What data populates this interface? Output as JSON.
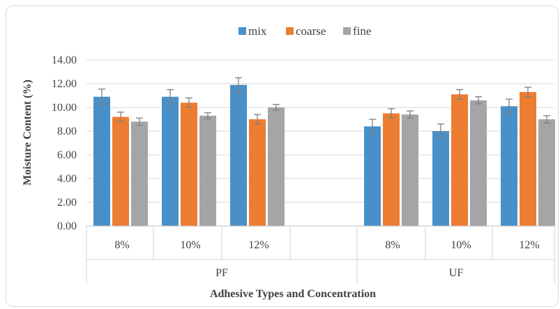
{
  "chart_data": {
    "type": "bar",
    "xlabel": "Adhesive Types and Concentration",
    "ylabel": "Moisture Content (%)",
    "ylim": [
      0,
      14
    ],
    "ytick_labels": [
      "0.00",
      "2.00",
      "4.00",
      "6.00",
      "8.00",
      "10.00",
      "12.00",
      "14.00"
    ],
    "grid": "horizontal",
    "legend_position": "top",
    "groups": [
      {
        "label": "PF",
        "categories": [
          "8%",
          "10%",
          "12%"
        ]
      },
      {
        "label": "UF",
        "categories": [
          "8%",
          "10%",
          "12%"
        ]
      }
    ],
    "series": [
      {
        "name": "mix",
        "color": "#4a90c8",
        "values": [
          10.9,
          10.9,
          11.9,
          8.4,
          8.0,
          10.1
        ],
        "errors": [
          0.65,
          0.6,
          0.6,
          0.6,
          0.6,
          0.6
        ]
      },
      {
        "name": "coarse",
        "color": "#ed7d31",
        "values": [
          9.2,
          10.4,
          9.0,
          9.5,
          11.1,
          11.3
        ],
        "errors": [
          0.4,
          0.4,
          0.4,
          0.4,
          0.4,
          0.4
        ]
      },
      {
        "name": "fine",
        "color": "#a5a5a5",
        "values": [
          8.8,
          9.3,
          10.0,
          9.4,
          10.6,
          9.0
        ],
        "errors": [
          0.3,
          0.25,
          0.25,
          0.3,
          0.3,
          0.3
        ]
      }
    ]
  }
}
